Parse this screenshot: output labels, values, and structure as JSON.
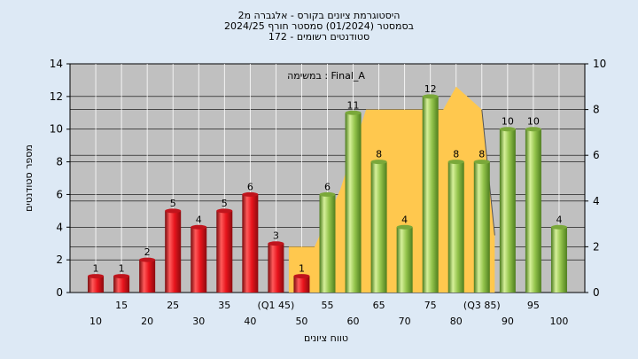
{
  "chart_data": {
    "type": "bar",
    "title_lines": [
      "היסטוגרמת ציונים בקורס - אלגברה מ2",
      "בסמסטר  (01/2024)  סמסטר חורף 2024/25",
      "סטודנטים רשומים - 172"
    ],
    "annotation": "במשימה : Final_A",
    "xlabel": "טווח ציונים",
    "ylabel": "מספר סטודנטים",
    "ylim": [
      0,
      14
    ],
    "y_ticks": [
      0,
      2,
      4,
      6,
      8,
      10,
      12,
      14
    ],
    "y2lim": [
      0,
      10
    ],
    "y2_ticks": [
      0,
      2,
      4,
      6,
      8,
      10
    ],
    "grid": true,
    "categories": [
      "10",
      "15",
      "20",
      "25",
      "30",
      "35",
      "40",
      "(Q1 45)",
      "50",
      "55",
      "60",
      "65",
      "70",
      "75",
      "80",
      "(Q3 85)",
      "90",
      "95",
      "100"
    ],
    "tick_rows": [
      "low",
      "high",
      "low",
      "high",
      "low",
      "high",
      "low",
      "high",
      "low",
      "high",
      "low",
      "high",
      "low",
      "high",
      "low",
      "high",
      "low",
      "high",
      "low"
    ],
    "values": [
      1,
      1,
      2,
      5,
      4,
      5,
      6,
      3,
      1,
      6,
      11,
      8,
      4,
      12,
      8,
      8,
      10,
      10,
      4
    ],
    "bar_colors": [
      "red",
      "red",
      "red",
      "red",
      "red",
      "red",
      "red",
      "red",
      "red",
      "green",
      "green",
      "green",
      "green",
      "green",
      "green",
      "green",
      "green",
      "green",
      "green"
    ],
    "area_series": {
      "color": "#ffc84e",
      "x": [
        7.5,
        8.5,
        9.5,
        10.5,
        11.5,
        12.5,
        13.5,
        14,
        15,
        15.5
      ],
      "y2": [
        2.0,
        2.0,
        4.5,
        8.0,
        8.0,
        8.0,
        8.0,
        9.0,
        8.0,
        2.5
      ]
    },
    "colors": {
      "background": "#dde9f5",
      "plot_bg": "#c0c0c0",
      "bar_red": "#e8141c",
      "bar_green": "#94c44c"
    }
  }
}
